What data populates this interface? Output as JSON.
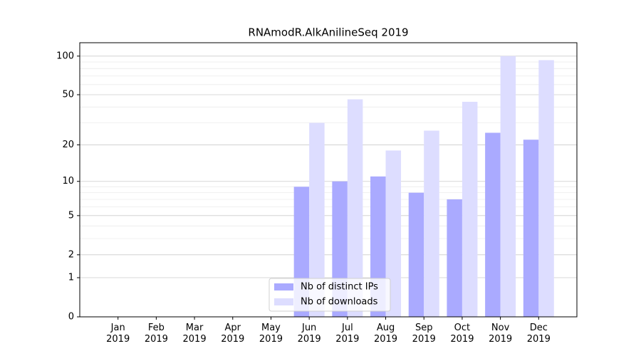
{
  "chart_data": {
    "type": "bar",
    "title": "RNAmodR.AlkAnilineSeq 2019",
    "categories": [
      "Jan 2019",
      "Feb 2019",
      "Mar 2019",
      "Apr 2019",
      "May 2019",
      "Jun 2019",
      "Jul 2019",
      "Aug 2019",
      "Sep 2019",
      "Oct 2019",
      "Nov 2019",
      "Dec 2019"
    ],
    "series": [
      {
        "name": "Nb of distinct IPs",
        "color": "#aaaaff",
        "values": [
          0,
          0,
          0,
          0,
          0,
          9,
          10,
          11,
          8,
          7,
          25,
          22
        ]
      },
      {
        "name": "Nb of downloads",
        "color": "#ddddff",
        "values": [
          0,
          0,
          0,
          0,
          0,
          30,
          46,
          18,
          26,
          44,
          100,
          93
        ]
      }
    ],
    "yscale": "log1p",
    "ylim": [
      0,
      127
    ],
    "yticks": [
      0,
      1,
      2,
      5,
      10,
      20,
      50,
      100
    ],
    "minor_yticks": [
      3,
      4,
      6,
      7,
      8,
      9,
      30,
      40,
      60,
      70,
      80,
      90
    ],
    "grid": true,
    "legend": "lower center"
  }
}
